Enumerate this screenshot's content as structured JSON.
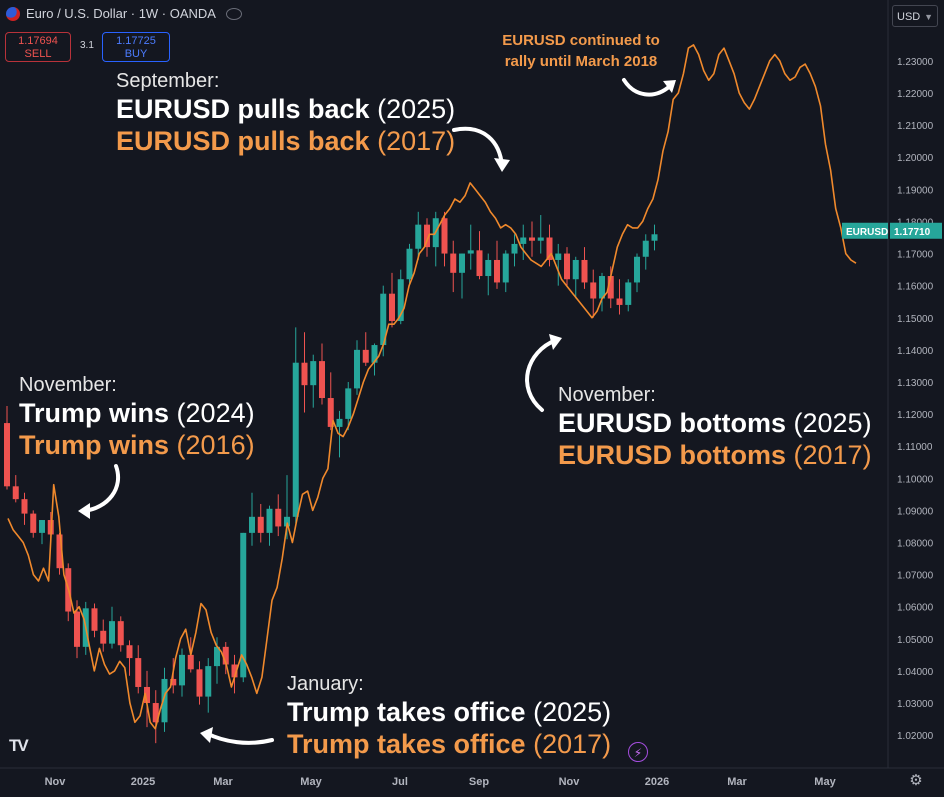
{
  "header": {
    "symbol_title": "Euro / U.S. Dollar · 1W · OANDA",
    "sell_price": "1.17694",
    "sell_label": "SELL",
    "spread": "3.1",
    "buy_price": "1.17725",
    "buy_label": "BUY",
    "currency": "USD"
  },
  "colors": {
    "background": "#141720",
    "up_candle": "#26a69a",
    "down_candle": "#ef5350",
    "overlay_line": "#f0892c",
    "annotation_highlight": "#f39a4b",
    "last_price_tag": "#26a69a"
  },
  "annotations": {
    "november": {
      "month": "November:",
      "line_a_bold": "Trump wins",
      "line_a_year": "(2024)",
      "line_b_bold": "Trump wins",
      "line_b_year": "(2016)"
    },
    "january": {
      "month": "January:",
      "line_a_bold": "Trump takes office",
      "line_a_year": "(2025)",
      "line_b_bold": "Trump takes office",
      "line_b_year": "(2017)"
    },
    "september": {
      "month": "September:",
      "line_a_bold": "EURUSD pulls back",
      "line_a_year": "(2025)",
      "line_b_bold": "EURUSD pulls back",
      "line_b_year": "(2017)"
    },
    "november_bottom": {
      "month": "November:",
      "line_a_bold": "EURUSD bottoms",
      "line_a_year": "(2025)",
      "line_b_bold": "EURUSD bottoms",
      "line_b_year": "(2017)"
    },
    "rally": {
      "line1": "EURUSD continued to",
      "line2": "rally until March 2018"
    }
  },
  "chart_data": {
    "type": "candlestick",
    "title": "Euro / U.S. Dollar · 1W · OANDA",
    "y_axis_ticks": [
      "1.23000",
      "1.22000",
      "1.21000",
      "1.20000",
      "1.19000",
      "1.18000",
      "1.17000",
      "1.16000",
      "1.15000",
      "1.14000",
      "1.13000",
      "1.12000",
      "1.11000",
      "1.10000",
      "1.09000",
      "1.08000",
      "1.07000",
      "1.06000",
      "1.05000",
      "1.04000",
      "1.03000",
      "1.02000"
    ],
    "ylim": [
      1.0135,
      1.2415
    ],
    "x_axis_ticks": [
      "Nov",
      "2025",
      "Mar",
      "May",
      "Jul",
      "Sep",
      "Nov",
      "2026",
      "Mar",
      "May"
    ],
    "last_price": {
      "label": "EURUSD",
      "value": "1.17710"
    },
    "series": [
      {
        "name": "EURUSD",
        "kind": "candles",
        "ohlc": [
          [
            1.1172,
            1.1225,
            1.0965,
            1.0975
          ],
          [
            1.0975,
            1.101,
            1.0925,
            1.0935
          ],
          [
            1.0935,
            1.0955,
            1.0855,
            1.089
          ],
          [
            1.089,
            1.09,
            1.0815,
            1.083
          ],
          [
            1.083,
            1.087,
            1.0795,
            1.087
          ],
          [
            1.087,
            1.0895,
            1.08,
            1.0825
          ],
          [
            1.0825,
            1.083,
            1.07,
            1.072
          ],
          [
            1.072,
            1.0735,
            1.0555,
            1.0585
          ],
          [
            1.0585,
            1.062,
            1.044,
            1.0475
          ],
          [
            1.0475,
            1.0615,
            1.045,
            1.0595
          ],
          [
            1.0595,
            1.061,
            1.0505,
            1.0525
          ],
          [
            1.0525,
            1.056,
            1.046,
            1.0485
          ],
          [
            1.0485,
            1.06,
            1.047,
            1.0555
          ],
          [
            1.0555,
            1.057,
            1.046,
            1.048
          ],
          [
            1.048,
            1.0495,
            1.0385,
            1.044
          ],
          [
            1.044,
            1.048,
            1.033,
            1.035
          ],
          [
            1.035,
            1.04,
            1.0225,
            1.03
          ],
          [
            1.03,
            1.034,
            1.0175,
            1.024
          ],
          [
            1.024,
            1.041,
            1.021,
            1.0375
          ],
          [
            1.0375,
            1.044,
            1.033,
            1.0355
          ],
          [
            1.0355,
            1.047,
            1.032,
            1.045
          ],
          [
            1.045,
            1.0505,
            1.0395,
            1.0405
          ],
          [
            1.0405,
            1.043,
            1.0295,
            1.032
          ],
          [
            1.032,
            1.044,
            1.027,
            1.0415
          ],
          [
            1.0415,
            1.0505,
            1.036,
            1.0475
          ],
          [
            1.0475,
            1.049,
            1.039,
            1.042
          ],
          [
            1.042,
            1.045,
            1.033,
            1.038
          ],
          [
            1.038,
            1.083,
            1.0365,
            1.083
          ],
          [
            1.083,
            1.0955,
            1.079,
            1.088
          ],
          [
            1.088,
            1.092,
            1.08,
            1.083
          ],
          [
            1.083,
            1.0915,
            1.079,
            1.0905
          ],
          [
            1.0905,
            1.095,
            1.082,
            1.085
          ],
          [
            1.085,
            1.101,
            1.081,
            1.088
          ],
          [
            1.088,
            1.147,
            1.086,
            1.136
          ],
          [
            1.136,
            1.1455,
            1.1205,
            1.129
          ],
          [
            1.129,
            1.1385,
            1.122,
            1.1365
          ],
          [
            1.1365,
            1.142,
            1.123,
            1.125
          ],
          [
            1.125,
            1.133,
            1.115,
            1.116
          ],
          [
            1.116,
            1.121,
            1.1065,
            1.1185
          ],
          [
            1.1185,
            1.13,
            1.115,
            1.128
          ],
          [
            1.128,
            1.143,
            1.126,
            1.14
          ],
          [
            1.14,
            1.1455,
            1.135,
            1.136
          ],
          [
            1.136,
            1.142,
            1.132,
            1.1415
          ],
          [
            1.1415,
            1.16,
            1.138,
            1.1575
          ],
          [
            1.1575,
            1.164,
            1.147,
            1.149
          ],
          [
            1.149,
            1.165,
            1.148,
            1.162
          ],
          [
            1.162,
            1.173,
            1.16,
            1.1715
          ],
          [
            1.1715,
            1.183,
            1.168,
            1.179
          ],
          [
            1.179,
            1.181,
            1.169,
            1.172
          ],
          [
            1.172,
            1.183,
            1.166,
            1.181
          ],
          [
            1.181,
            1.183,
            1.166,
            1.17
          ],
          [
            1.17,
            1.174,
            1.158,
            1.164
          ],
          [
            1.164,
            1.17,
            1.156,
            1.17
          ],
          [
            1.17,
            1.179,
            1.165,
            1.171
          ],
          [
            1.171,
            1.177,
            1.162,
            1.163
          ],
          [
            1.163,
            1.17,
            1.157,
            1.168
          ],
          [
            1.168,
            1.174,
            1.159,
            1.161
          ],
          [
            1.161,
            1.171,
            1.158,
            1.17
          ],
          [
            1.17,
            1.176,
            1.166,
            1.173
          ],
          [
            1.173,
            1.179,
            1.168,
            1.175
          ],
          [
            1.175,
            1.18,
            1.169,
            1.174
          ],
          [
            1.174,
            1.182,
            1.17,
            1.175
          ],
          [
            1.175,
            1.179,
            1.166,
            1.168
          ],
          [
            1.168,
            1.173,
            1.16,
            1.17
          ],
          [
            1.17,
            1.172,
            1.16,
            1.162
          ],
          [
            1.162,
            1.169,
            1.156,
            1.168
          ],
          [
            1.168,
            1.172,
            1.159,
            1.161
          ],
          [
            1.161,
            1.165,
            1.15,
            1.156
          ],
          [
            1.156,
            1.164,
            1.152,
            1.163
          ],
          [
            1.163,
            1.166,
            1.153,
            1.156
          ],
          [
            1.156,
            1.162,
            1.151,
            1.154
          ],
          [
            1.154,
            1.162,
            1.152,
            1.161
          ],
          [
            1.161,
            1.17,
            1.158,
            1.169
          ],
          [
            1.169,
            1.176,
            1.165,
            1.174
          ],
          [
            1.174,
            1.179,
            1.171,
            1.176
          ]
        ]
      },
      {
        "name": "EURUSD (2016–2018 overlay)",
        "kind": "line",
        "values": [
          1.0875,
          1.084,
          1.082,
          1.08,
          1.076,
          1.07,
          1.068,
          1.072,
          1.068,
          1.098,
          1.088,
          1.07,
          1.065,
          1.058,
          1.06,
          1.056,
          1.048,
          1.04,
          1.047,
          1.042,
          1.039,
          1.04,
          1.043,
          1.041,
          1.03,
          1.024,
          1.026,
          1.033,
          1.024,
          1.022,
          1.028,
          1.033,
          1.035,
          1.044,
          1.05,
          1.053,
          1.045,
          1.052,
          1.061,
          1.059,
          1.052,
          1.048,
          1.046,
          1.042,
          1.035,
          1.04,
          1.045,
          1.042,
          1.038,
          1.033,
          1.038,
          1.05,
          1.062,
          1.066,
          1.075,
          1.086,
          1.08,
          1.088,
          1.095,
          1.096,
          1.09,
          1.094,
          1.1,
          1.103,
          1.118,
          1.114,
          1.113,
          1.116,
          1.12,
          1.125,
          1.13,
          1.134,
          1.136,
          1.138,
          1.142,
          1.148,
          1.148,
          1.15,
          1.153,
          1.16,
          1.164,
          1.17,
          1.172,
          1.176,
          1.176,
          1.179,
          1.182,
          1.184,
          1.187,
          1.186,
          1.188,
          1.192,
          1.19,
          1.188,
          1.186,
          1.183,
          1.181,
          1.178,
          1.179,
          1.178,
          1.176,
          1.172,
          1.17,
          1.168,
          1.167,
          1.166,
          1.168,
          1.17,
          1.166,
          1.162,
          1.16,
          1.158,
          1.156,
          1.154,
          1.152,
          1.15,
          1.152,
          1.156,
          1.158,
          1.165,
          1.172,
          1.176,
          1.179,
          1.178,
          1.178,
          1.18,
          1.184,
          1.187,
          1.193,
          1.202,
          1.208,
          1.218,
          1.22,
          1.226,
          1.234,
          1.235,
          1.232,
          1.227,
          1.224,
          1.226,
          1.232,
          1.234,
          1.23,
          1.226,
          1.22,
          1.217,
          1.215,
          1.218,
          1.222,
          1.226,
          1.23,
          1.232,
          1.23,
          1.226,
          1.224,
          1.225,
          1.228,
          1.229,
          1.226,
          1.222,
          1.216,
          1.204,
          1.196,
          1.184,
          1.178,
          1.17,
          1.168,
          1.167
        ]
      }
    ],
    "legend": "none",
    "grid": false
  }
}
